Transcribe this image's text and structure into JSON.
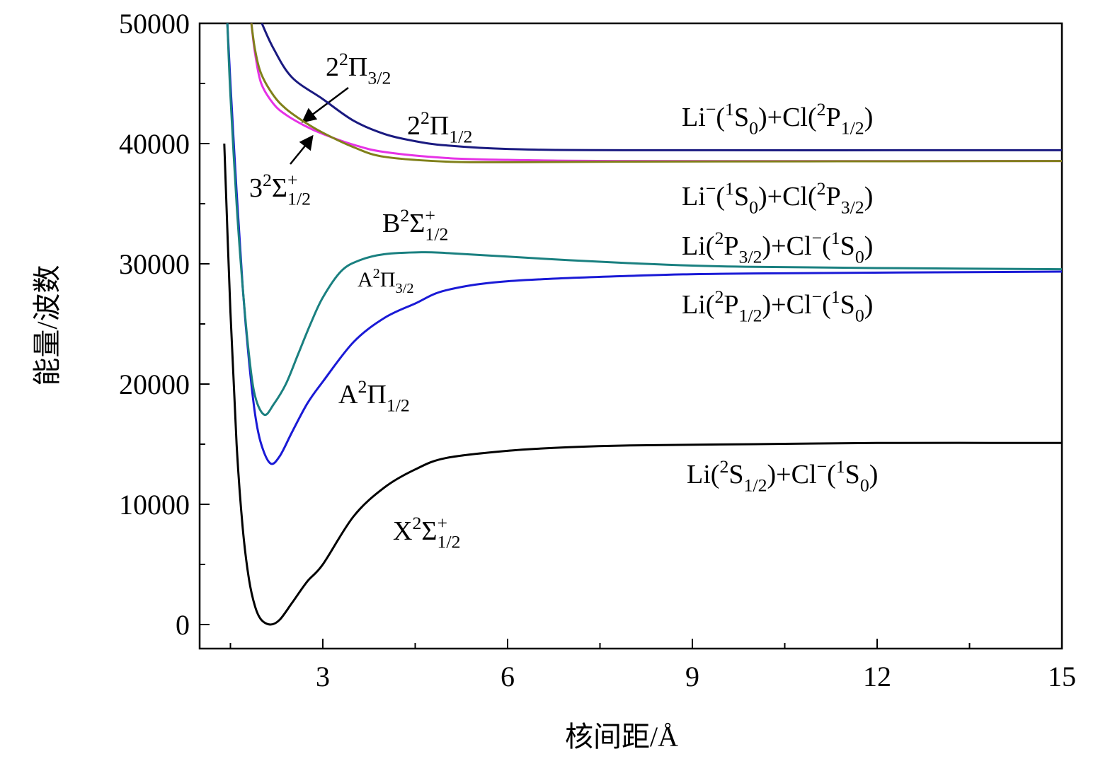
{
  "chart_data": {
    "type": "line",
    "xlabel": "核间距/Å",
    "ylabel": "能量/波数",
    "xlim": [
      1,
      15
    ],
    "ylim": [
      -2000,
      50000
    ],
    "xticks": [
      3,
      6,
      9,
      12,
      15
    ],
    "yticks": [
      0,
      10000,
      20000,
      30000,
      40000,
      50000
    ],
    "x_minor_ticks": [
      1.5,
      4.5,
      7.5,
      10.5,
      13.5
    ],
    "y_minor_ticks": [
      5000,
      15000,
      25000,
      35000,
      45000
    ],
    "series": [
      {
        "name": "X2Σ+1/2",
        "color": "#000000",
        "x": [
          1.4,
          1.5,
          1.6,
          1.7,
          1.8,
          1.9,
          2.0,
          2.15,
          2.3,
          2.5,
          2.75,
          3,
          3.5,
          4,
          4.5,
          5,
          6,
          7,
          8,
          10,
          12,
          15
        ],
        "values": [
          40000,
          26000,
          15000,
          8000,
          3800,
          1500,
          400,
          0,
          400,
          1800,
          3600,
          5000,
          9000,
          11400,
          12900,
          13850,
          14450,
          14750,
          14900,
          15000,
          15100,
          15100
        ]
      },
      {
        "name": "A2Π1/2",
        "color": "#1a1ad6",
        "x": [
          1.45,
          1.5,
          1.6,
          1.7,
          1.8,
          1.9,
          2.0,
          2.15,
          2.3,
          2.5,
          2.75,
          3,
          3.5,
          4,
          4.5,
          5,
          6,
          8,
          10,
          15
        ],
        "values": [
          50000,
          45000,
          36000,
          28000,
          22000,
          17500,
          15000,
          13400,
          14000,
          16000,
          18400,
          20200,
          23500,
          25500,
          26700,
          27800,
          28550,
          29000,
          29200,
          29350
        ]
      },
      {
        "name": "A2Π3/2",
        "color": "#1a8080",
        "x": [
          1.45,
          1.5,
          1.6,
          1.7,
          1.8,
          1.9,
          2.05,
          2.2,
          2.4,
          2.6,
          2.8,
          3,
          3.3,
          3.6,
          4,
          4.6,
          5,
          6,
          7,
          8,
          9,
          10,
          12,
          15
        ],
        "values": [
          50000,
          44000,
          35000,
          28000,
          22500,
          19000,
          17450,
          18300,
          20000,
          22500,
          25000,
          27200,
          29400,
          30300,
          30800,
          30960,
          30900,
          30600,
          30300,
          30050,
          29850,
          29750,
          29650,
          29550
        ]
      },
      {
        "name": "3 2Σ+1/2",
        "color": "#e632e6",
        "x": [
          1.84,
          1.9,
          2.0,
          2.2,
          2.4,
          2.7,
          3,
          3.5,
          4,
          5,
          6,
          8,
          15
        ],
        "values": [
          50000,
          47500,
          45000,
          43300,
          42400,
          41500,
          40800,
          39900,
          39300,
          38800,
          38650,
          38550,
          38550
        ]
      },
      {
        "name": "2 2Π3/2",
        "color": "#80801a",
        "x": [
          1.84,
          1.9,
          2.0,
          2.2,
          2.4,
          2.7,
          3,
          3.5,
          4,
          5,
          6,
          8,
          15
        ],
        "values": [
          50000,
          47800,
          45800,
          44000,
          42900,
          41800,
          40900,
          39700,
          38900,
          38500,
          38450,
          38500,
          38550
        ]
      },
      {
        "name": "2 2Π1/2",
        "color": "#1a1a80",
        "x": [
          2.01,
          2.2,
          2.5,
          3,
          3.5,
          4,
          4.5,
          5,
          6,
          8,
          15
        ],
        "values": [
          50000,
          47900,
          45500,
          43700,
          41900,
          40800,
          40200,
          39850,
          39550,
          39450,
          39450
        ]
      }
    ],
    "annotations": [
      {
        "parts": [
          {
            "t": "2"
          },
          {
            "t": "2",
            "s": "sup"
          },
          {
            "t": "Π"
          },
          {
            "t": "3/2",
            "s": "sub"
          }
        ]
      },
      {
        "parts": [
          {
            "t": "2"
          },
          {
            "t": "2",
            "s": "sup"
          },
          {
            "t": "Π"
          },
          {
            "t": "1/2",
            "s": "sub"
          }
        ]
      },
      {
        "parts": [
          {
            "t": "3"
          },
          {
            "t": "2",
            "s": "sup"
          },
          {
            "t": "Σ"
          },
          {
            "t": "+",
            "s": "sup"
          },
          {
            "t": "1/2",
            "s": "sub",
            "stack": true
          }
        ]
      },
      {
        "parts": [
          {
            "t": "B"
          },
          {
            "t": "2",
            "s": "sup"
          },
          {
            "t": "Σ"
          },
          {
            "t": "+",
            "s": "sup"
          },
          {
            "t": "1/2",
            "s": "sub",
            "stack": true
          }
        ]
      },
      {
        "parts": [
          {
            "t": "A"
          },
          {
            "t": "2",
            "s": "sup"
          },
          {
            "t": "Π"
          },
          {
            "t": "3/2",
            "s": "sub"
          }
        ]
      },
      {
        "parts": [
          {
            "t": "A"
          },
          {
            "t": "2",
            "s": "sup"
          },
          {
            "t": "Π"
          },
          {
            "t": "1/2",
            "s": "sub"
          }
        ]
      },
      {
        "parts": [
          {
            "t": "X"
          },
          {
            "t": "2",
            "s": "sup"
          },
          {
            "t": "Σ"
          },
          {
            "t": "+",
            "s": "sup"
          },
          {
            "t": "1/2",
            "s": "sub",
            "stack": true
          }
        ]
      },
      {
        "parts": [
          {
            "t": "Li"
          },
          {
            "t": "−",
            "s": "sup"
          },
          {
            "t": "("
          },
          {
            "t": "1",
            "s": "sup"
          },
          {
            "t": "S"
          },
          {
            "t": "0",
            "s": "sub"
          },
          {
            "t": ")+Cl("
          },
          {
            "t": "2",
            "s": "sup"
          },
          {
            "t": "P"
          },
          {
            "t": "1/2",
            "s": "sub"
          },
          {
            "t": ")"
          }
        ]
      },
      {
        "parts": [
          {
            "t": "Li"
          },
          {
            "t": "−",
            "s": "sup"
          },
          {
            "t": "("
          },
          {
            "t": "1",
            "s": "sup"
          },
          {
            "t": "S"
          },
          {
            "t": "0",
            "s": "sub"
          },
          {
            "t": ")+Cl("
          },
          {
            "t": "2",
            "s": "sup"
          },
          {
            "t": "P"
          },
          {
            "t": "3/2",
            "s": "sub"
          },
          {
            "t": ")"
          }
        ]
      },
      {
        "parts": [
          {
            "t": "Li("
          },
          {
            "t": "2",
            "s": "sup"
          },
          {
            "t": "P"
          },
          {
            "t": "3/2",
            "s": "sub"
          },
          {
            "t": ")+Cl"
          },
          {
            "t": "−",
            "s": "sup"
          },
          {
            "t": "("
          },
          {
            "t": "1",
            "s": "sup"
          },
          {
            "t": "S"
          },
          {
            "t": "0",
            "s": "sub"
          },
          {
            "t": ")"
          }
        ]
      },
      {
        "parts": [
          {
            "t": "Li("
          },
          {
            "t": "2",
            "s": "sup"
          },
          {
            "t": "P"
          },
          {
            "t": "1/2",
            "s": "sub"
          },
          {
            "t": ")+Cl"
          },
          {
            "t": "−",
            "s": "sup"
          },
          {
            "t": "("
          },
          {
            "t": "1",
            "s": "sup"
          },
          {
            "t": "S"
          },
          {
            "t": "0",
            "s": "sub"
          },
          {
            "t": ")"
          }
        ]
      },
      {
        "parts": [
          {
            "t": "Li("
          },
          {
            "t": "2",
            "s": "sup"
          },
          {
            "t": "S"
          },
          {
            "t": "1/2",
            "s": "sub"
          },
          {
            "t": ")+Cl"
          },
          {
            "t": "−",
            "s": "sup"
          },
          {
            "t": "("
          },
          {
            "t": "1",
            "s": "sup"
          },
          {
            "t": "S"
          },
          {
            "t": "0",
            "s": "sub"
          },
          {
            "t": ")"
          }
        ]
      }
    ]
  }
}
